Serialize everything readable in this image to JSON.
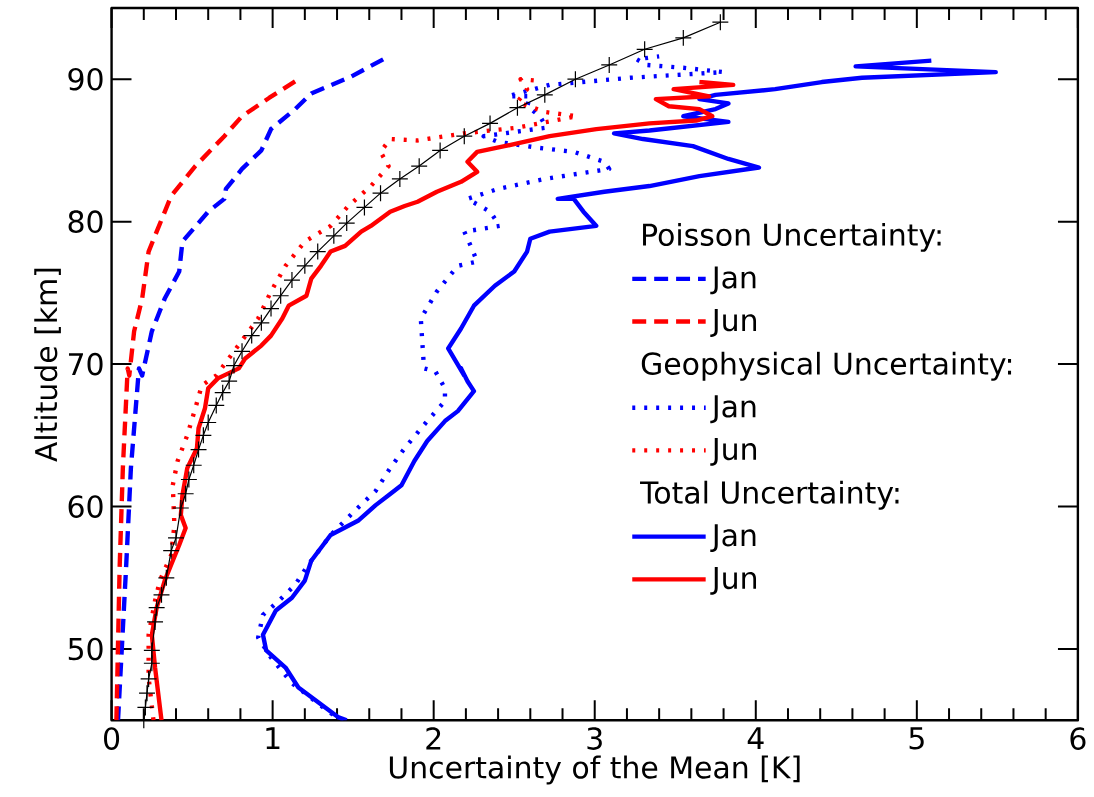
{
  "chart_data": {
    "type": "line",
    "orientation": "horizontal",
    "xlabel": "Uncertainty of the Mean [K]",
    "ylabel": "Altitude [km]",
    "xlim": [
      0,
      6
    ],
    "ylim": [
      45,
      95
    ],
    "xticks": [
      0,
      1,
      2,
      3,
      4,
      5,
      6
    ],
    "yticks": [
      50,
      60,
      70,
      80,
      90
    ],
    "legend": "right",
    "annotations": [
      "Poisson Uncertainty:",
      "Geophysical Uncertainty:",
      "Total Uncertainty:"
    ],
    "series": [
      {
        "name": "Jan",
        "color": "#0000ff",
        "line_style": "dashed",
        "values": [
          0.04,
          0.09,
          0.12,
          0.17,
          0.19,
          0.25,
          0.33,
          0.42,
          0.44,
          0.6,
          0.7,
          0.71,
          0.81,
          0.93,
          0.99,
          1.14,
          1.24,
          1.49,
          1.72
        ],
        "x": [
          45.0,
          55.7,
          62.7,
          69.7,
          69.2,
          72.3,
          74.6,
          76.5,
          78.6,
          80.7,
          81.6,
          82.3,
          83.7,
          85.0,
          86.5,
          87.9,
          89.0,
          90.2,
          91.6
        ]
      },
      {
        "name": "Jun",
        "color": "#ff0000",
        "line_style": "dashed",
        "values": [
          0.03,
          0.05,
          0.07,
          0.1,
          0.11,
          0.14,
          0.19,
          0.23,
          0.28,
          0.37,
          0.52,
          0.7,
          0.81,
          0.98,
          1.16
        ],
        "x": [
          45.0,
          55.7,
          62.7,
          69.7,
          69.2,
          72.3,
          74.6,
          77.9,
          79.3,
          81.8,
          83.9,
          86.0,
          87.4,
          88.7,
          90.0
        ]
      },
      {
        "name": "Jan",
        "color": "#0000ff",
        "line_style": "dotted",
        "values": [
          1.44,
          1.36,
          1.12,
          0.99,
          0.91,
          0.94,
          1.04,
          1.14,
          1.22,
          1.36,
          1.51,
          1.64,
          1.73,
          1.82,
          1.96,
          2.07,
          2.07,
          2.01,
          1.94,
          1.92,
          2.02,
          2.15,
          2.27,
          2.23,
          2.19,
          2.41,
          2.35,
          2.21,
          2.4,
          2.69,
          3.09,
          3.06,
          2.87,
          2.64,
          2.4,
          2.31,
          2.7,
          2.66,
          2.58,
          2.6,
          2.46,
          2.72,
          3.22,
          3.8,
          3.55,
          3.32,
          3.26,
          3.4
        ],
        "x": [
          45.0,
          45.5,
          47.6,
          49.4,
          50.8,
          52.4,
          53.4,
          54.5,
          55.9,
          58.0,
          59.7,
          61.1,
          62.7,
          64.1,
          66.0,
          67.4,
          68.3,
          69.5,
          69.7,
          73.2,
          75.1,
          76.9,
          77.2,
          78.3,
          79.3,
          79.7,
          80.7,
          81.6,
          82.3,
          83.0,
          83.7,
          84.2,
          84.9,
          85.2,
          85.6,
          86.0,
          86.6,
          87.4,
          88.1,
          88.8,
          88.8,
          89.6,
          90.1,
          90.5,
          90.8,
          91.0,
          91.4,
          91.6
        ]
      },
      {
        "name": "Jun",
        "color": "#ff0000",
        "line_style": "dotted",
        "values": [
          0.26,
          0.23,
          0.23,
          0.27,
          0.3,
          0.37,
          0.39,
          0.38,
          0.41,
          0.47,
          0.52,
          0.56,
          0.65,
          0.91,
          0.99,
          1.08,
          1.2,
          1.36,
          1.47,
          1.61,
          1.72,
          1.67,
          1.73,
          1.9,
          2.19,
          2.52,
          2.89,
          2.69,
          2.52,
          2.58,
          2.54,
          2.64
        ],
        "x": [
          45.0,
          48.0,
          51.0,
          53.4,
          54.8,
          56.6,
          58.7,
          61.5,
          63.2,
          65.0,
          66.9,
          68.5,
          69.2,
          73.2,
          75.1,
          76.9,
          78.6,
          79.7,
          81.1,
          82.5,
          83.9,
          84.9,
          85.8,
          85.7,
          86.2,
          86.6,
          87.4,
          87.7,
          88.4,
          89.3,
          90.0,
          89.9
        ]
      },
      {
        "name": "Jan",
        "color": "#0000ff",
        "line_style": "solid",
        "values": [
          1.46,
          1.41,
          1.16,
          1.08,
          0.96,
          0.94,
          1.02,
          1.12,
          1.2,
          1.24,
          1.36,
          1.53,
          1.64,
          1.72,
          1.8,
          1.88,
          1.96,
          2.07,
          2.15,
          2.25,
          2.21,
          2.17,
          2.19,
          2.09,
          2.17,
          2.25,
          2.38,
          2.5,
          2.58,
          2.6,
          2.72,
          3.01,
          2.93,
          2.87,
          2.77,
          3.06,
          3.34,
          3.65,
          4.02,
          3.83,
          3.61,
          3.3,
          3.12,
          3.34,
          3.83,
          3.55,
          3.75,
          3.83,
          3.65,
          3.75,
          4.12,
          4.41,
          4.66,
          5.49,
          4.62,
          5.09
        ],
        "x": [
          45.0,
          45.2,
          47.3,
          48.7,
          49.9,
          51.0,
          52.7,
          53.6,
          54.8,
          56.2,
          58.0,
          59.0,
          60.1,
          60.8,
          61.5,
          63.2,
          64.6,
          66.0,
          66.7,
          68.1,
          68.8,
          69.7,
          69.2,
          71.1,
          72.5,
          74.1,
          75.5,
          76.5,
          77.9,
          78.8,
          79.3,
          79.7,
          80.7,
          81.6,
          81.6,
          82.1,
          82.5,
          83.2,
          83.8,
          84.4,
          85.3,
          85.8,
          86.2,
          86.4,
          87.0,
          87.4,
          87.9,
          88.3,
          88.6,
          88.9,
          89.3,
          89.8,
          90.1,
          90.5,
          90.9,
          91.3
        ]
      },
      {
        "name": "Jun",
        "color": "#ff0000",
        "line_style": "solid",
        "values": [
          0.31,
          0.27,
          0.25,
          0.28,
          0.33,
          0.38,
          0.42,
          0.46,
          0.43,
          0.44,
          0.47,
          0.53,
          0.54,
          0.58,
          0.6,
          0.66,
          0.79,
          0.83,
          0.93,
          0.99,
          1.06,
          1.1,
          1.21,
          1.24,
          1.3,
          1.36,
          1.45,
          1.55,
          1.61,
          1.73,
          1.82,
          1.9,
          2.02,
          2.17,
          2.27,
          2.21,
          2.27,
          2.44,
          2.72,
          3.01,
          3.34,
          3.63,
          3.73,
          3.65,
          3.46,
          3.38,
          3.71,
          3.49,
          3.86,
          3.65
        ],
        "x": [
          45.0,
          48.7,
          51.0,
          52.9,
          54.8,
          56.2,
          57.3,
          58.5,
          59.4,
          60.8,
          62.7,
          64.1,
          65.5,
          66.9,
          68.3,
          69.0,
          69.7,
          70.4,
          71.3,
          72.0,
          73.2,
          74.1,
          74.8,
          76.0,
          76.9,
          77.9,
          78.3,
          79.3,
          79.7,
          80.7,
          81.1,
          81.4,
          82.1,
          82.8,
          83.5,
          84.2,
          84.9,
          85.3,
          86.0,
          86.5,
          86.9,
          87.1,
          87.4,
          87.9,
          88.1,
          88.6,
          88.8,
          89.3,
          89.6,
          89.8
        ]
      },
      {
        "color": "#000000",
        "line_style": "solid",
        "marker": "cross",
        "values": [
          0.2,
          0.21,
          0.22,
          0.23,
          0.25,
          0.25,
          0.27,
          0.28,
          0.31,
          0.34,
          0.37,
          0.4,
          0.43,
          0.46,
          0.48,
          0.51,
          0.54,
          0.57,
          0.6,
          0.65,
          0.69,
          0.73,
          0.76,
          0.81,
          0.87,
          0.93,
          0.99,
          1.05,
          1.12,
          1.2,
          1.28,
          1.38,
          1.46,
          1.57,
          1.67,
          1.79,
          1.91,
          2.04,
          2.19,
          2.35,
          2.52,
          2.69,
          2.88,
          3.09,
          3.31,
          3.55,
          3.78
        ],
        "x": [
          45.0,
          45.9,
          46.9,
          47.9,
          49.0,
          49.9,
          51.9,
          52.9,
          53.8,
          55.0,
          56.9,
          57.8,
          59.9,
          60.9,
          61.9,
          62.9,
          64.0,
          65.0,
          65.9,
          67.1,
          68.0,
          68.8,
          69.9,
          70.9,
          72.0,
          72.9,
          73.9,
          74.8,
          75.9,
          76.9,
          77.9,
          79.0,
          79.9,
          81.0,
          82.0,
          83.0,
          83.9,
          85.0,
          86.0,
          86.9,
          88.0,
          88.9,
          90.0,
          91.0,
          92.1,
          92.9,
          94.0
        ]
      }
    ]
  }
}
